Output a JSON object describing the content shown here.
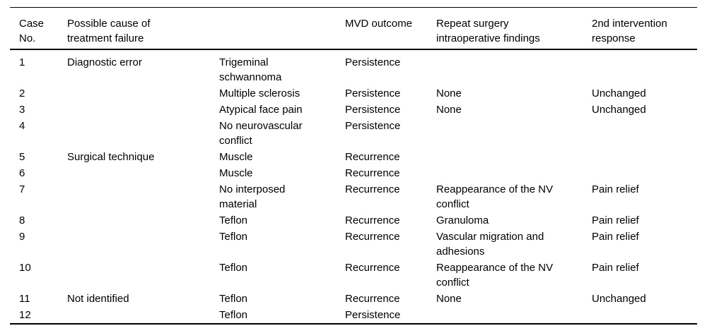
{
  "table": {
    "columns": [
      {
        "key": "case_no",
        "label": "Case\nNo."
      },
      {
        "key": "cause",
        "label": "Possible cause of\ntreatment failure"
      },
      {
        "key": "detail",
        "label": ""
      },
      {
        "key": "mvd",
        "label": "MVD outcome"
      },
      {
        "key": "repeat",
        "label": "Repeat surgery\nintraoperative findings"
      },
      {
        "key": "response",
        "label": "2nd intervention\nresponse"
      }
    ],
    "rows": [
      [
        "1",
        "Diagnostic error",
        "Trigeminal\nschwannoma",
        "Persistence",
        "",
        ""
      ],
      [
        "2",
        "",
        "Multiple sclerosis",
        "Persistence",
        "None",
        "Unchanged"
      ],
      [
        "3",
        "",
        "Atypical face pain",
        "Persistence",
        "None",
        "Unchanged"
      ],
      [
        "4",
        "",
        "No neurovascular\nconflict",
        "Persistence",
        "",
        ""
      ],
      [
        "5",
        "Surgical technique",
        "Muscle",
        "Recurrence",
        "",
        ""
      ],
      [
        "6",
        "",
        "Muscle",
        "Recurrence",
        "",
        ""
      ],
      [
        "7",
        "",
        "No interposed\nmaterial",
        "Recurrence",
        "Reappearance of the NV\nconflict",
        "Pain relief"
      ],
      [
        "8",
        "",
        "Teflon",
        "Recurrence",
        "Granuloma",
        "Pain relief"
      ],
      [
        "9",
        "",
        "Teflon",
        "Recurrence",
        "Vascular migration and\nadhesions",
        "Pain relief"
      ],
      [
        "10",
        "",
        "Teflon",
        "Recurrence",
        "Reappearance of the NV\nconflict",
        "Pain relief"
      ],
      [
        "11",
        "Not identified",
        "Teflon",
        "Recurrence",
        "None",
        "Unchanged"
      ],
      [
        "12",
        "",
        "Teflon",
        "Persistence",
        "",
        ""
      ]
    ]
  },
  "colors": {
    "text": "#000000",
    "rule": "#000000",
    "background": "#ffffff"
  }
}
